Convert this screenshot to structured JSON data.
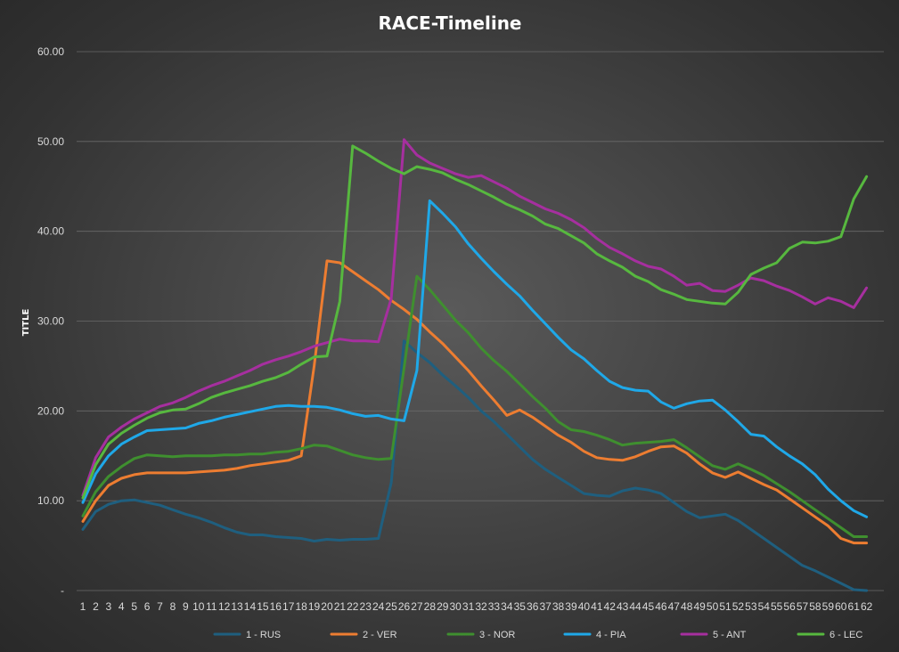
{
  "chart_data": {
    "type": "line",
    "title": "RACE-Timeline",
    "xlabel": "",
    "ylabel": "TITLE",
    "ylim": [
      0,
      60
    ],
    "yticks": [
      "-",
      "10.00",
      "20.00",
      "30.00",
      "40.00",
      "50.00",
      "60.00"
    ],
    "grid": true,
    "legend": "bottom",
    "categories": [
      1,
      2,
      3,
      4,
      5,
      6,
      7,
      8,
      9,
      10,
      11,
      12,
      13,
      14,
      15,
      16,
      17,
      18,
      19,
      20,
      21,
      22,
      23,
      24,
      25,
      26,
      27,
      28,
      29,
      30,
      31,
      32,
      33,
      34,
      35,
      36,
      37,
      38,
      39,
      40,
      41,
      42,
      43,
      44,
      45,
      46,
      47,
      48,
      49,
      50,
      51,
      52,
      53,
      54,
      55,
      56,
      57,
      58,
      59,
      60,
      61,
      62
    ],
    "series": [
      {
        "name": "1 - RUS",
        "color": "#1f5f7f",
        "values": [
          6.8,
          8.8,
          9.6,
          10.0,
          10.1,
          9.8,
          9.5,
          9.0,
          8.5,
          8.1,
          7.6,
          7.0,
          6.5,
          6.2,
          6.2,
          6.0,
          5.9,
          5.8,
          5.5,
          5.7,
          5.6,
          5.7,
          5.7,
          5.8,
          12.0,
          27.8,
          26.5,
          25.4,
          24.0,
          22.8,
          21.5,
          20.0,
          18.8,
          17.4,
          16.0,
          14.6,
          13.5,
          12.6,
          11.7,
          10.8,
          10.6,
          10.5,
          11.1,
          11.4,
          11.2,
          10.8,
          9.8,
          8.8,
          8.1,
          8.3,
          8.5,
          7.8,
          6.8,
          5.8,
          4.8,
          3.8,
          2.8,
          2.2,
          1.5,
          0.8,
          0.1,
          0
        ]
      },
      {
        "name": "2 - VER",
        "color": "#ed7d31",
        "values": [
          7.7,
          10.0,
          11.7,
          12.5,
          12.9,
          13.1,
          13.1,
          13.1,
          13.1,
          13.2,
          13.3,
          13.4,
          13.6,
          13.9,
          14.1,
          14.3,
          14.5,
          15.0,
          25.0,
          36.7,
          36.5,
          35.5,
          34.5,
          33.5,
          32.3,
          31.3,
          30.2,
          28.8,
          27.5,
          26.0,
          24.5,
          22.8,
          21.2,
          19.5,
          20.1,
          19.3,
          18.3,
          17.3,
          16.5,
          15.5,
          14.8,
          14.6,
          14.5,
          14.9,
          15.5,
          16.0,
          16.1,
          15.3,
          14.1,
          13.1,
          12.6,
          13.2,
          12.5,
          11.8,
          11.2,
          10.2,
          9.2,
          8.2,
          7.2,
          5.8,
          5.3,
          5.3
        ]
      },
      {
        "name": "3 - NOR",
        "color": "#3f8f2f",
        "values": [
          8.3,
          11.0,
          12.7,
          13.8,
          14.7,
          15.1,
          15.0,
          14.9,
          15.0,
          15.0,
          15.0,
          15.1,
          15.1,
          15.2,
          15.2,
          15.4,
          15.5,
          15.8,
          16.2,
          16.1,
          15.6,
          15.1,
          14.8,
          14.6,
          14.7,
          24.8,
          35.0,
          33.5,
          31.8,
          30.1,
          28.7,
          27.0,
          25.6,
          24.4,
          23.0,
          21.6,
          20.3,
          18.8,
          17.9,
          17.7,
          17.3,
          16.8,
          16.2,
          16.4,
          16.5,
          16.6,
          16.8,
          15.9,
          14.9,
          13.9,
          13.5,
          14.1,
          13.5,
          12.8,
          11.9,
          11.0,
          10.0,
          9.0,
          8.0,
          7.0,
          6.0,
          6.0
        ]
      },
      {
        "name": "4 - PIA",
        "color": "#1fa8e8",
        "values": [
          9.8,
          13.0,
          15.0,
          16.3,
          17.1,
          17.8,
          17.9,
          18.0,
          18.1,
          18.6,
          18.9,
          19.3,
          19.6,
          19.9,
          20.2,
          20.5,
          20.6,
          20.5,
          20.5,
          20.4,
          20.1,
          19.7,
          19.4,
          19.5,
          19.1,
          18.9,
          24.5,
          43.4,
          42.0,
          40.5,
          38.6,
          37.0,
          35.5,
          34.1,
          32.8,
          31.2,
          29.7,
          28.2,
          26.8,
          25.8,
          24.5,
          23.3,
          22.6,
          22.3,
          22.2,
          21.0,
          20.3,
          20.8,
          21.1,
          21.2,
          20.1,
          18.8,
          17.4,
          17.2,
          16.0,
          15.0,
          14.1,
          12.9,
          11.3,
          10.0,
          8.9,
          8.2
        ]
      },
      {
        "name": "5 - ANT",
        "color": "#a62f9f",
        "values": [
          10.6,
          14.8,
          17.1,
          18.2,
          19.1,
          19.8,
          20.5,
          20.9,
          21.5,
          22.2,
          22.8,
          23.3,
          23.9,
          24.5,
          25.2,
          25.7,
          26.1,
          26.6,
          27.2,
          27.6,
          28.0,
          27.8,
          27.8,
          27.7,
          32.5,
          50.2,
          48.5,
          47.6,
          47.0,
          46.4,
          46.0,
          46.2,
          45.5,
          44.8,
          43.9,
          43.2,
          42.5,
          42.0,
          41.3,
          40.4,
          39.2,
          38.2,
          37.5,
          36.7,
          36.1,
          35.8,
          35.0,
          34.0,
          34.2,
          33.4,
          33.3,
          34.0,
          34.8,
          34.5,
          33.9,
          33.4,
          32.7,
          31.9,
          32.6,
          32.2,
          31.5,
          33.7
        ]
      },
      {
        "name": "6 - LEC",
        "color": "#57b83f",
        "values": [
          10.3,
          14.0,
          16.3,
          17.5,
          18.4,
          19.2,
          19.8,
          20.1,
          20.2,
          20.8,
          21.5,
          22.0,
          22.4,
          22.8,
          23.3,
          23.7,
          24.3,
          25.2,
          26.0,
          26.1,
          32.2,
          49.5,
          48.7,
          47.8,
          47.0,
          46.4,
          47.2,
          46.9,
          46.5,
          45.8,
          45.2,
          44.5,
          43.8,
          43.0,
          42.4,
          41.7,
          40.8,
          40.3,
          39.5,
          38.7,
          37.5,
          36.7,
          36.0,
          35.0,
          34.4,
          33.5,
          33.0,
          32.4,
          32.2,
          32.0,
          31.9,
          33.2,
          35.2,
          35.9,
          36.5,
          38.1,
          38.8,
          38.7,
          38.9,
          39.4,
          43.6,
          46.1
        ]
      }
    ]
  }
}
